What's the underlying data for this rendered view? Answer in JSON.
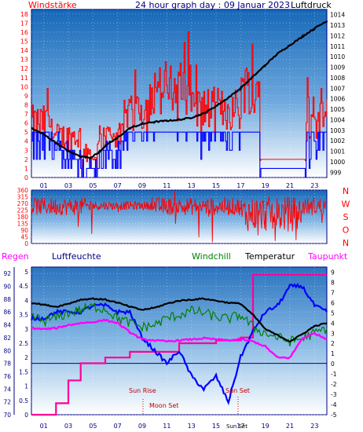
{
  "header": {
    "left_label": "Windstärke",
    "title": "24 hour graph day : 09 Januar 2023",
    "right_label": "Luftdruck"
  },
  "middle": {
    "compass_labels": [
      "N",
      "W",
      "S",
      "O",
      "N"
    ]
  },
  "bottom_header": {
    "regen": "Regen",
    "luftfeuchte": "Luftfeuchte",
    "windchill": "Windchill",
    "temperatur": "Temperatur",
    "taupunkt": "Taupunkt"
  },
  "annotations": {
    "sun_rise": "Sun Rise",
    "sun_set": "Sun Set",
    "moon_set": "Moon Set",
    "sun_set_short": "Sun Set"
  },
  "colors": {
    "wind": "#ff0000",
    "gust_blue": "#0000ff",
    "pressure": "#000000",
    "windchill": "#008000",
    "temperature": "#000000",
    "dewpoint": "#ff00ff",
    "humidity": "#0000ff",
    "rain": "#ff0066",
    "navy_axis": "#000080",
    "red_axis": "#ff0000",
    "bg_top": "#1f74c0",
    "bg_bottom": "#ffffff"
  },
  "chart_data": [
    {
      "type": "line",
      "name": "wind_pressure",
      "x_ticks": [
        "01",
        "03",
        "05",
        "07",
        "09",
        "11",
        "13",
        "15",
        "17",
        "19",
        "21",
        "23"
      ],
      "y_left_ticks": [
        "0",
        "1",
        "2",
        "3",
        "4",
        "5",
        "6",
        "7",
        "8",
        "9",
        "10",
        "11",
        "12",
        "13",
        "14",
        "15",
        "16",
        "17",
        "18"
      ],
      "y_right_ticks": [
        "999",
        "1000",
        "1001",
        "1002",
        "1003",
        "1004",
        "1005",
        "1006",
        "1007",
        "1008",
        "1009",
        "1010",
        "1011",
        "1012",
        "1013",
        "1014"
      ],
      "ylim_left": [
        0,
        18.5
      ],
      "ylim_right": [
        998.5,
        1014.5
      ],
      "pressure": {
        "x": [
          0,
          1,
          2,
          3,
          4,
          4.8,
          5.5,
          6,
          7,
          8,
          9,
          10,
          11,
          12,
          13,
          14,
          15,
          16,
          17,
          18,
          19,
          20,
          21,
          22,
          23,
          24
        ],
        "y": [
          1003.2,
          1002.6,
          1001.8,
          1001.0,
          1000.5,
          1000.4,
          1000.9,
          1001.5,
          1002.3,
          1003.2,
          1003.6,
          1003.8,
          1003.9,
          1004.0,
          1004.2,
          1004.6,
          1005.3,
          1006.1,
          1007.0,
          1008.1,
          1009.2,
          1010.3,
          1011.1,
          1011.9,
          1012.7,
          1013.4
        ]
      }
    },
    {
      "type": "line",
      "name": "wind_direction",
      "y_left_ticks": [
        "0",
        "45",
        "90",
        "135",
        "180",
        "225",
        "270",
        "315",
        "360"
      ],
      "ylim": [
        0,
        360
      ]
    },
    {
      "type": "line",
      "name": "temp_humidity",
      "x_ticks": [
        "01",
        "03",
        "05",
        "07",
        "09",
        "11",
        "13",
        "15",
        "17",
        "19",
        "21",
        "23"
      ],
      "humidity_ticks": [
        "70",
        "72",
        "74",
        "76",
        "78",
        "80",
        "82",
        "84",
        "86",
        "88",
        "90",
        "92"
      ],
      "rain_ticks": [
        "0",
        "0.5",
        "1",
        "1.5",
        "2",
        "2.5",
        "3",
        "3.5",
        "4",
        "4.5",
        "5"
      ],
      "temp_ticks": [
        "-5",
        "-4",
        "-3",
        "-2",
        "-1",
        "0",
        "1",
        "2",
        "3",
        "4",
        "5",
        "6",
        "7",
        "8",
        "9"
      ],
      "humidity_ylim": [
        70,
        93
      ],
      "temp_ylim": [
        -5,
        9.5
      ],
      "temperature": {
        "x": [
          0,
          1,
          2,
          3,
          4,
          5,
          6,
          7,
          8,
          9,
          10,
          11,
          12,
          13,
          14,
          15,
          16,
          17,
          18,
          19,
          20,
          21,
          22,
          23,
          24
        ],
        "y": [
          6.0,
          5.8,
          5.6,
          5.9,
          6.3,
          6.4,
          6.3,
          6.0,
          5.6,
          5.3,
          5.5,
          5.9,
          6.2,
          6.3,
          6.4,
          6.2,
          6.0,
          5.9,
          4.8,
          3.4,
          2.8,
          2.2,
          2.9,
          3.7,
          4.0
        ]
      },
      "windchill": {
        "x": [
          0,
          1,
          2,
          3,
          4,
          5,
          6,
          7,
          8,
          9,
          10,
          11,
          12,
          13,
          14,
          15,
          16,
          17,
          18,
          19,
          20,
          21,
          22,
          23,
          24
        ],
        "y": [
          4.7,
          4.2,
          4.5,
          5.0,
          5.3,
          5.6,
          5.4,
          4.5,
          4.0,
          3.6,
          3.8,
          4.5,
          4.8,
          5.2,
          5.0,
          4.6,
          4.4,
          4.8,
          3.6,
          3.0,
          2.6,
          2.2,
          2.5,
          3.0,
          3.5
        ]
      },
      "dewpoint": {
        "x": [
          0,
          1,
          2,
          3,
          4,
          5,
          6,
          7,
          8,
          9,
          10,
          11,
          12,
          13,
          14,
          15,
          16,
          17,
          18,
          19,
          20,
          21,
          22,
          23,
          24
        ],
        "y": [
          3.5,
          3.4,
          3.5,
          3.8,
          4.0,
          4.1,
          4.3,
          4.0,
          3.1,
          2.4,
          2.3,
          2.2,
          2.3,
          2.4,
          2.5,
          2.4,
          2.3,
          2.4,
          2.2,
          1.7,
          0.6,
          0.6,
          2.5,
          3.0,
          2.4
        ]
      },
      "humidity": {
        "x": [
          0,
          1,
          2,
          3,
          4,
          5,
          6,
          7,
          8,
          9,
          10,
          11,
          12,
          13,
          14,
          15,
          16,
          17,
          18,
          19,
          20,
          21,
          22,
          23,
          24
        ],
        "y": [
          85,
          85,
          86,
          86,
          86,
          87,
          87,
          86,
          86,
          82,
          80,
          78,
          80,
          76,
          74,
          76,
          72,
          79,
          83,
          86,
          87,
          90,
          90,
          87,
          86
        ]
      },
      "rain": {
        "x": [
          0,
          2,
          3,
          4,
          6,
          8,
          12,
          15,
          17,
          18,
          20,
          24
        ],
        "y": [
          0,
          0.4,
          1.2,
          1.8,
          2.0,
          2.2,
          2.5,
          2.6,
          2.7,
          4.9,
          4.9,
          4.9
        ]
      },
      "reference_line_humidity": 78
    }
  ]
}
